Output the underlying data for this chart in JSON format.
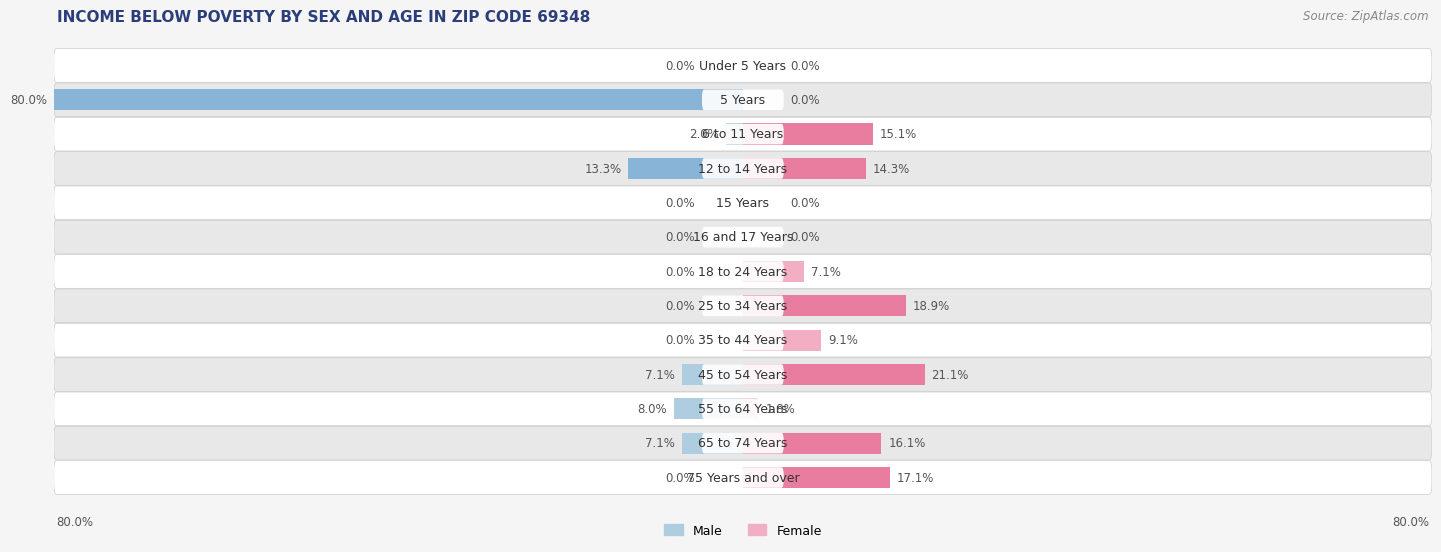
{
  "title": "INCOME BELOW POVERTY BY SEX AND AGE IN ZIP CODE 69348",
  "source": "Source: ZipAtlas.com",
  "categories": [
    "Under 5 Years",
    "5 Years",
    "6 to 11 Years",
    "12 to 14 Years",
    "15 Years",
    "16 and 17 Years",
    "18 to 24 Years",
    "25 to 34 Years",
    "35 to 44 Years",
    "45 to 54 Years",
    "55 to 64 Years",
    "65 to 74 Years",
    "75 Years and over"
  ],
  "male": [
    0.0,
    80.0,
    2.0,
    13.3,
    0.0,
    0.0,
    0.0,
    0.0,
    0.0,
    7.1,
    8.0,
    7.1,
    0.0
  ],
  "female": [
    0.0,
    0.0,
    15.1,
    14.3,
    0.0,
    0.0,
    7.1,
    18.9,
    9.1,
    21.1,
    1.8,
    16.1,
    17.1
  ],
  "male_color": "#88b4d8",
  "female_color": "#e87da0",
  "male_color_light": "#aecde0",
  "female_color_light": "#f2afc4",
  "bar_height": 0.62,
  "xlim": 80.0,
  "bg_color": "#f5f5f5",
  "row_bg_white": "#ffffff",
  "row_bg_gray": "#e8e8e8",
  "label_fontsize": 9,
  "title_fontsize": 11,
  "source_fontsize": 8.5,
  "value_fontsize": 8.5
}
